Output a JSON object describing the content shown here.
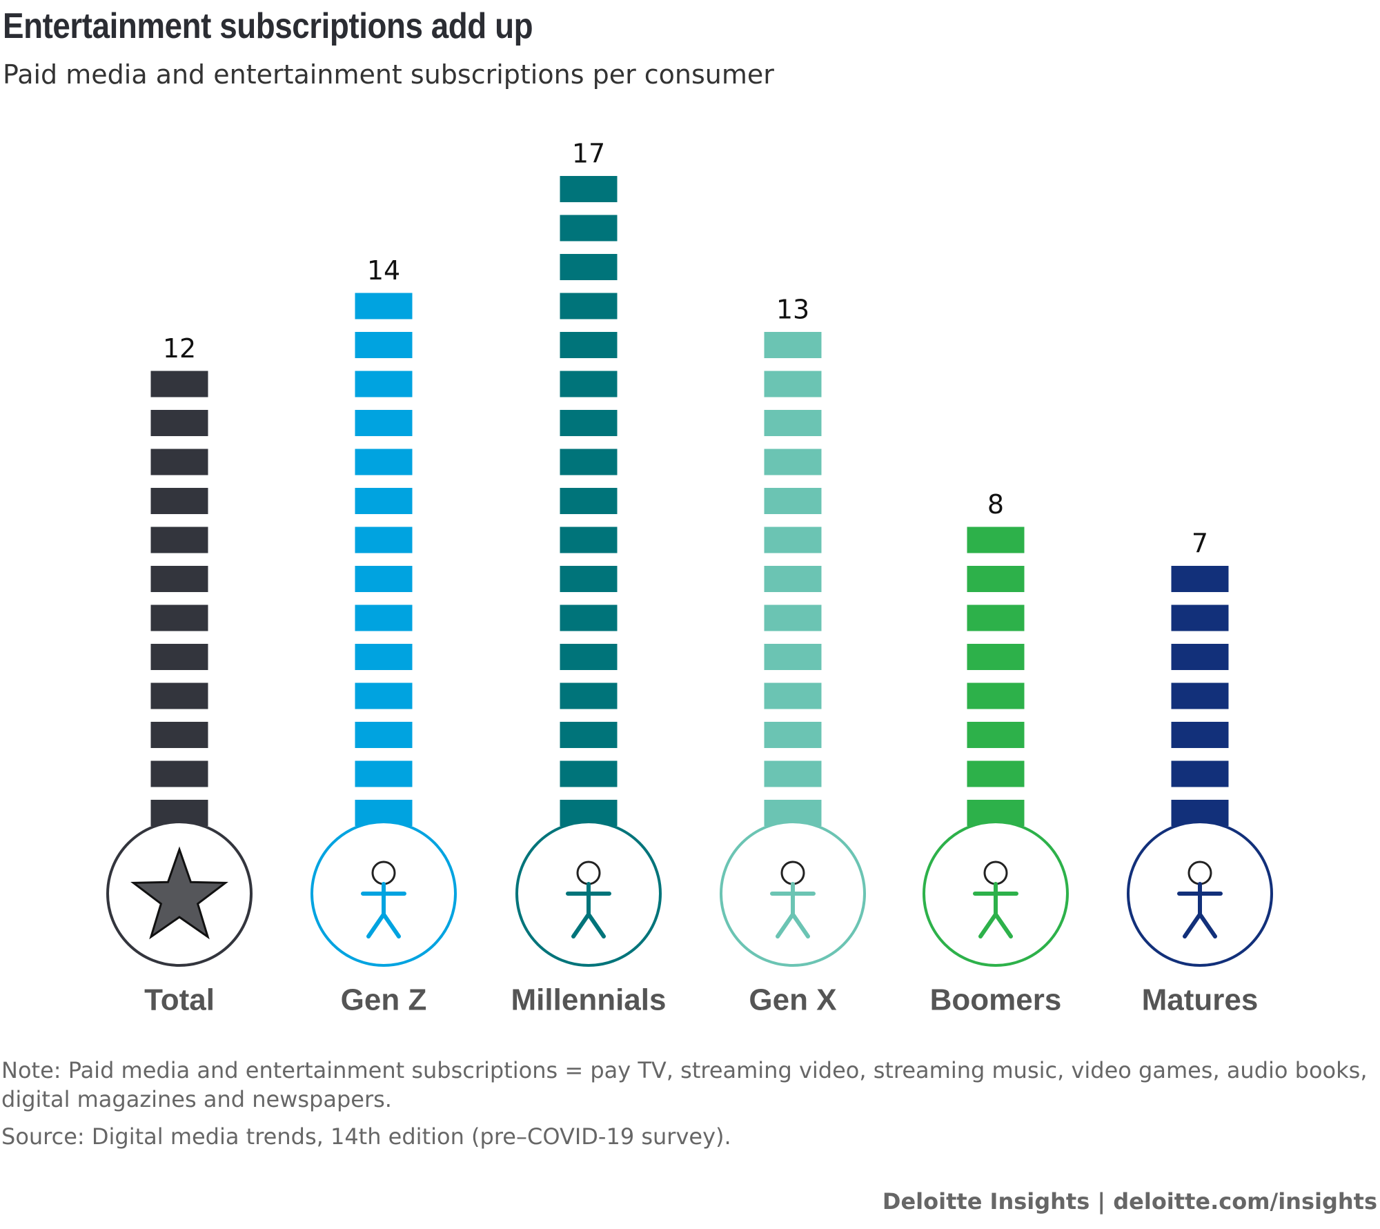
{
  "chart_data": {
    "type": "bar",
    "title": "Entertainment subscriptions add up",
    "subtitle": "Paid media and entertainment subscriptions per consumer",
    "categories": [
      "Total",
      "Gen Z",
      "Millennials",
      "Gen X",
      "Boomers",
      "Matures"
    ],
    "values": [
      12,
      14,
      17,
      13,
      8,
      7
    ],
    "colors": [
      "#33353d",
      "#00a3e0",
      "#00747a",
      "#6bc4b3",
      "#2db14a",
      "#12307a"
    ],
    "note": "Note: Paid media and entertainment subscriptions = pay TV, streaming video, streaming music, video games, audio books, digital magazines and newspapers.",
    "source": "Source: Digital media trends, 14th edition (pre–COVID-19 survey).",
    "footer": "Deloitte Insights | deloitte.com/insights"
  }
}
